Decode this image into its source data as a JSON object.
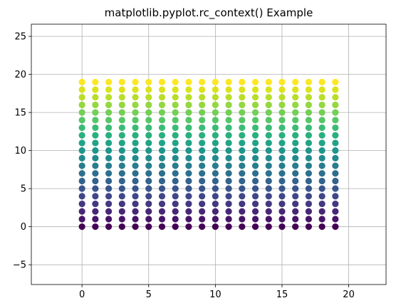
{
  "chart_data": {
    "type": "scatter",
    "title": "matplotlib.pyplot.rc_context() Example",
    "xlabel": "",
    "ylabel": "",
    "xlim": [
      -3.8,
      22.8
    ],
    "ylim": [
      -7.6,
      26.6
    ],
    "xticks": [
      0,
      5,
      10,
      15,
      20
    ],
    "yticks": [
      -5,
      0,
      5,
      10,
      15,
      20,
      25
    ],
    "grid": true,
    "x_values": [
      0,
      1,
      2,
      3,
      4,
      5,
      6,
      7,
      8,
      9,
      10,
      11,
      12,
      13,
      14,
      15,
      16,
      17,
      18,
      19
    ],
    "y_values": [
      0,
      1,
      2,
      3,
      4,
      5,
      6,
      7,
      8,
      9,
      10,
      11,
      12,
      13,
      14,
      15,
      16,
      17,
      18,
      19
    ],
    "points": "full grid: every x in x_values paired with every y in y_values",
    "colormap": "viridis",
    "color_by": "y",
    "colors": [
      "#440154",
      "#481a6c",
      "#472f7d",
      "#414487",
      "#39568c",
      "#31688e",
      "#2a788e",
      "#23888e",
      "#1f988b",
      "#22a884",
      "#35b779",
      "#54c568",
      "#7ad151",
      "#a5db36",
      "#d2e21b",
      "#fde725"
    ]
  }
}
